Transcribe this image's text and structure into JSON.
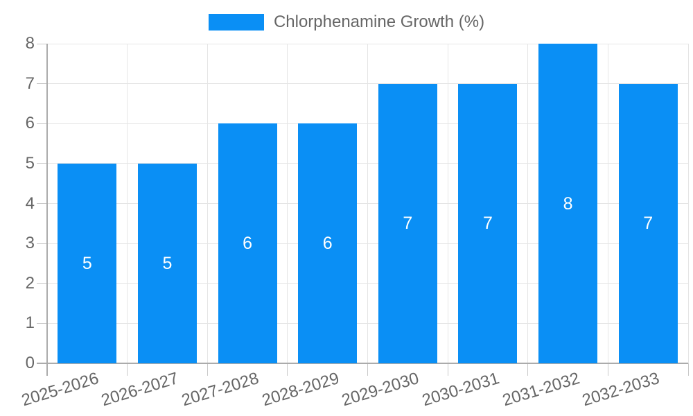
{
  "chart_data": {
    "type": "bar",
    "title": "Chlorphenamine Growth (%)",
    "categories": [
      "2025-2026",
      "2026-2027",
      "2027-2028",
      "2028-2029",
      "2029-2030",
      "2030-2031",
      "2031-2032",
      "2032-2033"
    ],
    "values": [
      5,
      5,
      6,
      6,
      7,
      7,
      8,
      7
    ],
    "value_labels": [
      "5",
      "5",
      "6",
      "6",
      "7",
      "7",
      "8",
      "7"
    ],
    "xlabel": "",
    "ylabel": "",
    "ylim": [
      0,
      8
    ],
    "yticks": [
      "0",
      "1",
      "2",
      "3",
      "4",
      "5",
      "6",
      "7",
      "8"
    ],
    "grid": true,
    "legend_position": "top-center",
    "value_label_position": "center",
    "colors": {
      "bar": "#0a8ff5",
      "gridline": "#e5e5e5",
      "axis_line": "#ababab",
      "tick_mark": "#c9c9c9",
      "axis_text": "#666666",
      "legend_text": "#666666",
      "value_label_text": "#ffffff",
      "background": "#ffffff"
    }
  }
}
